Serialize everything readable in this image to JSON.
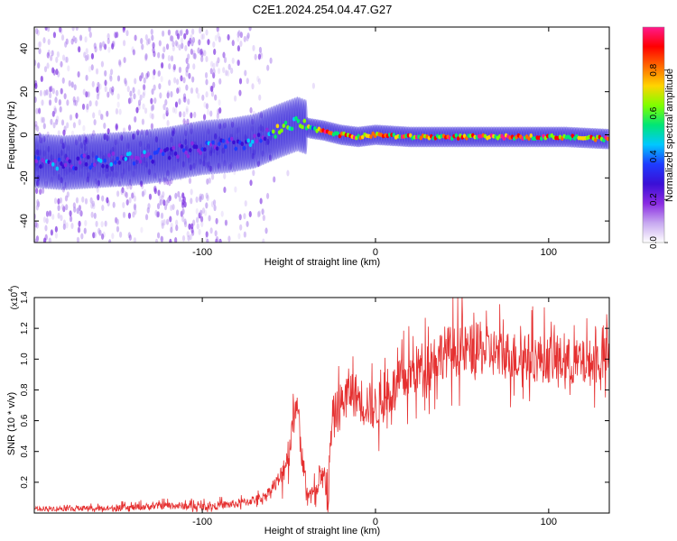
{
  "title": "C2E1.2024.254.04.47.G27",
  "chart_data": [
    {
      "type": "heatmap",
      "xlabel": "Height of straight line (km)",
      "ylabel": "Frequency (Hz)",
      "xlim": [
        -197,
        135
      ],
      "ylim": [
        -50,
        50
      ],
      "x_ticks": [
        -100,
        0,
        100
      ],
      "y_ticks": [
        -40,
        -20,
        0,
        20,
        40
      ],
      "colorbar": {
        "label": "Normalized spectral amplitude",
        "range": [
          0,
          1
        ],
        "ticks": [
          "0.0",
          "0.2",
          "0.4",
          "0.6",
          "0.8"
        ],
        "colormap": [
          "#ffffff",
          "#c7a8f0",
          "#8a2be2",
          "#3a0fd6",
          "#1e3cff",
          "#00c8ff",
          "#00e676",
          "#7fff00",
          "#ffd400",
          "#ff6a00",
          "#ff0000",
          "#ff1a8c"
        ]
      },
      "ridge": [
        {
          "x": -197,
          "y": -12
        },
        {
          "x": -180,
          "y": -13
        },
        {
          "x": -160,
          "y": -12
        },
        {
          "x": -140,
          "y": -11
        },
        {
          "x": -120,
          "y": -9
        },
        {
          "x": -100,
          "y": -6
        },
        {
          "x": -85,
          "y": -5
        },
        {
          "x": -70,
          "y": -3
        },
        {
          "x": -55,
          "y": 2
        },
        {
          "x": -45,
          "y": 5
        },
        {
          "x": -38,
          "y": 3
        },
        {
          "x": -30,
          "y": 2
        },
        {
          "x": -20,
          "y": 0
        },
        {
          "x": -10,
          "y": -1
        },
        {
          "x": 0,
          "y": 0
        },
        {
          "x": 20,
          "y": -1
        },
        {
          "x": 50,
          "y": -1
        },
        {
          "x": 80,
          "y": -1
        },
        {
          "x": 110,
          "y": -1
        },
        {
          "x": 135,
          "y": -2
        }
      ]
    },
    {
      "type": "line",
      "xlabel": "Height of straight line (km)",
      "ylabel": "SNR (10 * v/v)",
      "y_multiplier": "(x10",
      "y_multiplier_exp": "4",
      "xlim": [
        -197,
        135
      ],
      "ylim": [
        0,
        1.4
      ],
      "x_ticks": [
        -100,
        0,
        100
      ],
      "y_ticks": [
        "0.2",
        "0.4",
        "0.6",
        "0.8",
        "1.0",
        "1.2",
        "1.4"
      ],
      "series": [
        {
          "color": "#e53030",
          "envelope": [
            {
              "x": -197,
              "y": 0.03
            },
            {
              "x": -150,
              "y": 0.03
            },
            {
              "x": -120,
              "y": 0.05
            },
            {
              "x": -100,
              "y": 0.04
            },
            {
              "x": -80,
              "y": 0.06
            },
            {
              "x": -65,
              "y": 0.1
            },
            {
              "x": -55,
              "y": 0.22
            },
            {
              "x": -50,
              "y": 0.4
            },
            {
              "x": -47,
              "y": 0.65
            },
            {
              "x": -45,
              "y": 0.75
            },
            {
              "x": -43,
              "y": 0.4
            },
            {
              "x": -40,
              "y": 0.15
            },
            {
              "x": -35,
              "y": 0.1
            },
            {
              "x": -30,
              "y": 0.22
            },
            {
              "x": -27,
              "y": 0.2
            },
            {
              "x": -25,
              "y": 0.6
            },
            {
              "x": -20,
              "y": 0.7
            },
            {
              "x": -15,
              "y": 0.8
            },
            {
              "x": -10,
              "y": 0.75
            },
            {
              "x": 0,
              "y": 0.68
            },
            {
              "x": 10,
              "y": 0.8
            },
            {
              "x": 20,
              "y": 0.9
            },
            {
              "x": 30,
              "y": 0.98
            },
            {
              "x": 40,
              "y": 1.05
            },
            {
              "x": 60,
              "y": 1.06
            },
            {
              "x": 80,
              "y": 1.02
            },
            {
              "x": 100,
              "y": 1.0
            },
            {
              "x": 120,
              "y": 0.97
            },
            {
              "x": 135,
              "y": 1.0
            }
          ],
          "noise_amplitude": [
            {
              "x": -197,
              "y": 0.015
            },
            {
              "x": -60,
              "y": 0.03
            },
            {
              "x": -50,
              "y": 0.12
            },
            {
              "x": -40,
              "y": 0.05
            },
            {
              "x": -25,
              "y": 0.15
            },
            {
              "x": 0,
              "y": 0.15
            },
            {
              "x": 40,
              "y": 0.17
            },
            {
              "x": 135,
              "y": 0.15
            }
          ]
        }
      ]
    }
  ]
}
